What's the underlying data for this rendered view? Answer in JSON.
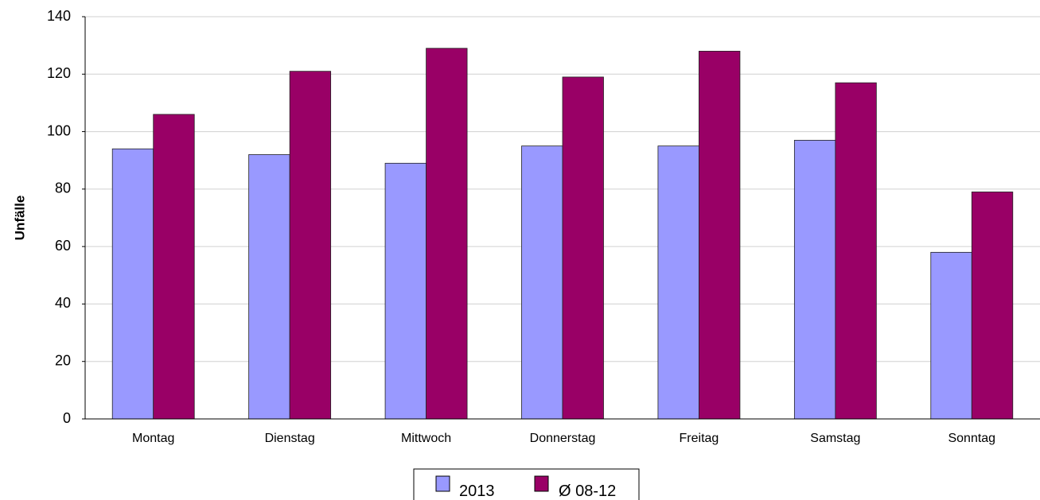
{
  "chart_data": {
    "type": "bar",
    "title": "",
    "xlabel": "",
    "ylabel": "Unfälle",
    "ylim": [
      0,
      140
    ],
    "yticks": [
      0,
      20,
      40,
      60,
      80,
      100,
      120,
      140
    ],
    "grid": true,
    "legend_position": "bottom-center",
    "categories": [
      "Montag",
      "Dienstag",
      "Mittwoch",
      "Donnerstag",
      "Freitag",
      "Samstag",
      "Sonntag"
    ],
    "series": [
      {
        "name": "2013",
        "color": "#9999ff",
        "values": [
          94,
          92,
          89,
          95,
          95,
          97,
          58
        ]
      },
      {
        "name": "Ø 08-12",
        "color": "#990066",
        "values": [
          106,
          121,
          129,
          119,
          128,
          117,
          79
        ]
      }
    ]
  }
}
